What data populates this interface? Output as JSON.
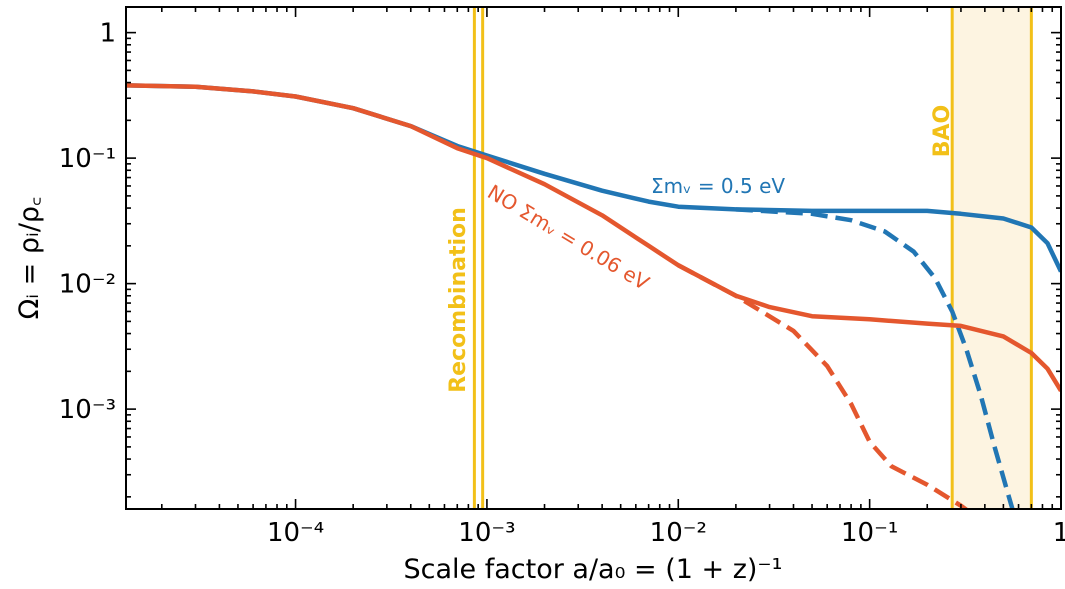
{
  "chart_data": {
    "type": "line",
    "xscale": "log",
    "yscale": "log",
    "xlim": [
      1.3e-05,
      1.0
    ],
    "ylim": [
      0.00016,
      1.6
    ],
    "xlabel": "Scale factor a/a₀ = (1 + z)⁻¹",
    "ylabel": "Ωᵢ = ρᵢ/ρ꜀",
    "x_ticks": [
      {
        "value": 0.0001,
        "label": "10⁻⁴"
      },
      {
        "value": 0.001,
        "label": "10⁻³"
      },
      {
        "value": 0.01,
        "label": "10⁻²"
      },
      {
        "value": 0.1,
        "label": "10⁻¹"
      },
      {
        "value": 1,
        "label": "1"
      }
    ],
    "y_ticks": [
      {
        "value": 1,
        "label": "1"
      },
      {
        "value": 0.1,
        "label": "10⁻¹"
      },
      {
        "value": 0.01,
        "label": "10⁻²"
      },
      {
        "value": 0.001,
        "label": "10⁻³"
      }
    ],
    "colors": {
      "blue": "#2176b4",
      "orange": "#e4572e",
      "gold": "#f2c018",
      "band": "#fdf4e1"
    },
    "series": [
      {
        "name": "Σmᵥ = 0.5 eV",
        "color": "#2176b4",
        "style": "solid",
        "points": [
          [
            1.3e-05,
            0.38
          ],
          [
            3e-05,
            0.37
          ],
          [
            6e-05,
            0.34
          ],
          [
            0.0001,
            0.31
          ],
          [
            0.0002,
            0.25
          ],
          [
            0.0004,
            0.18
          ],
          [
            0.0007,
            0.125
          ],
          [
            0.001,
            0.105
          ],
          [
            0.002,
            0.075
          ],
          [
            0.004,
            0.055
          ],
          [
            0.007,
            0.045
          ],
          [
            0.01,
            0.041
          ],
          [
            0.02,
            0.039
          ],
          [
            0.05,
            0.038
          ],
          [
            0.1,
            0.038
          ],
          [
            0.2,
            0.038
          ],
          [
            0.3,
            0.036
          ],
          [
            0.5,
            0.033
          ],
          [
            0.7,
            0.028
          ],
          [
            0.85,
            0.021
          ],
          [
            1.0,
            0.0125
          ]
        ]
      },
      {
        "name": "",
        "color": "#2176b4",
        "style": "dashed",
        "points": [
          [
            0.02,
            0.039
          ],
          [
            0.05,
            0.036
          ],
          [
            0.08,
            0.032
          ],
          [
            0.12,
            0.026
          ],
          [
            0.17,
            0.018
          ],
          [
            0.22,
            0.011
          ],
          [
            0.27,
            0.006
          ],
          [
            0.32,
            0.003
          ],
          [
            0.38,
            0.0013
          ],
          [
            0.45,
            0.0005
          ],
          [
            0.52,
            0.00023
          ],
          [
            0.58,
            0.00013
          ]
        ]
      },
      {
        "name": "NO Σmᵥ = 0.06 eV",
        "color": "#e4572e",
        "style": "solid",
        "points": [
          [
            1.3e-05,
            0.38
          ],
          [
            3e-05,
            0.37
          ],
          [
            6e-05,
            0.34
          ],
          [
            0.0001,
            0.31
          ],
          [
            0.0002,
            0.25
          ],
          [
            0.0004,
            0.18
          ],
          [
            0.0007,
            0.12
          ],
          [
            0.001,
            0.1
          ],
          [
            0.002,
            0.062
          ],
          [
            0.004,
            0.035
          ],
          [
            0.007,
            0.02
          ],
          [
            0.01,
            0.014
          ],
          [
            0.02,
            0.008
          ],
          [
            0.03,
            0.0065
          ],
          [
            0.05,
            0.0055
          ],
          [
            0.1,
            0.0052
          ],
          [
            0.2,
            0.0048
          ],
          [
            0.3,
            0.0046
          ],
          [
            0.5,
            0.0038
          ],
          [
            0.7,
            0.0028
          ],
          [
            0.85,
            0.0021
          ],
          [
            1.0,
            0.0014
          ]
        ]
      },
      {
        "name": "",
        "color": "#e4572e",
        "style": "dashed",
        "points": [
          [
            0.01,
            0.014
          ],
          [
            0.02,
            0.008
          ],
          [
            0.04,
            0.0042
          ],
          [
            0.06,
            0.0022
          ],
          [
            0.08,
            0.0011
          ],
          [
            0.1,
            0.00055
          ],
          [
            0.13,
            0.00035
          ],
          [
            0.2,
            0.00025
          ],
          [
            0.3,
            0.00017
          ],
          [
            0.38,
            0.00013
          ]
        ]
      }
    ],
    "vlines": [
      {
        "x": 0.00086,
        "color": "#f2c018"
      },
      {
        "x": 0.00095,
        "color": "#f2c018"
      },
      {
        "x": 0.27,
        "color": "#f2c018"
      },
      {
        "x": 0.7,
        "color": "#f2c018"
      }
    ],
    "band": {
      "x0": 0.27,
      "x1": 0.7,
      "color": "#fdf4e1"
    },
    "annotations": {
      "recombination": "Recombination",
      "bao": "BAO",
      "massive": "Σmᵥ = 0.5 eV",
      "normal_ordering": "NO Σmᵥ = 0.06 eV"
    }
  }
}
